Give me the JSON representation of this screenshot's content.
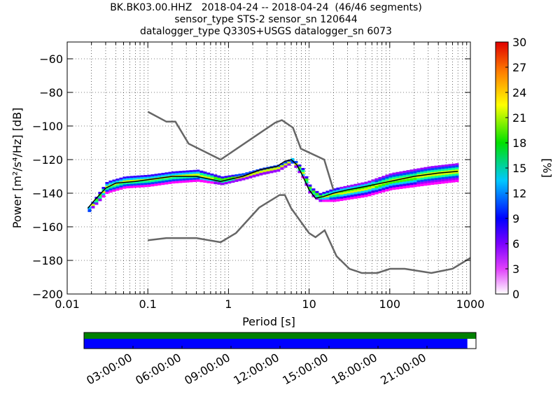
{
  "title": {
    "line1": "BK.BK03.00.HHZ   2018-04-24 -- 2018-04-24  (46/46 segments)",
    "line2": "sensor_type STS-2 sensor_sn 120644",
    "line3": "datalogger_type Q330S+USGS datalogger_sn 6073"
  },
  "colors": {
    "noise_model": "#666666",
    "mean_line": "#000000",
    "coverage_top": "#008000",
    "coverage_bottom": "#0000ff"
  },
  "chart_data": {
    "type": "heatmap",
    "title": "BK.BK03.00.HHZ   2018-04-24 -- 2018-04-24  (46/46 segments)",
    "xlabel": "Period [s]",
    "ylabel": "Power [m²/s⁴/Hz] [dB]",
    "x_scale": "log",
    "xlim": [
      0.01,
      1000
    ],
    "ylim": [
      -200,
      -50
    ],
    "x_ticks": [
      0.01,
      0.1,
      1,
      10,
      100,
      1000
    ],
    "x_tick_labels": [
      "0.01",
      "0.1",
      "1",
      "10",
      "100",
      "1000"
    ],
    "y_ticks": [
      -200,
      -180,
      -160,
      -140,
      -120,
      -100,
      -80,
      -60
    ],
    "grid": true,
    "colorbar": {
      "label": "[%]",
      "min": 0,
      "max": 30,
      "ticks": [
        0,
        3,
        6,
        9,
        12,
        15,
        18,
        21,
        24,
        27,
        30
      ]
    },
    "noise_models": [
      {
        "x": [
          0.1,
          0.17,
          0.22,
          0.32,
          0.8,
          3.8,
          4.6,
          6.3,
          7.9,
          15.4,
          20
        ],
        "y": [
          -91.5,
          -97.4,
          -97.4,
          -110.5,
          -120,
          -98,
          -96.5,
          -101,
          -113.5,
          -120,
          -138
        ]
      },
      {
        "x": [
          0.1,
          0.17,
          0.4,
          0.8,
          1.24,
          2.4,
          4.3,
          5,
          6,
          10,
          12,
          15.6,
          21.9,
          31.6,
          45,
          70,
          101,
          154,
          328,
          600,
          1000
        ],
        "y": [
          -168,
          -166.7,
          -166.7,
          -169.2,
          -163.7,
          -148.6,
          -141.1,
          -141.1,
          -149,
          -163.8,
          -166.2,
          -162.1,
          -177.5,
          -185,
          -187.5,
          -187.5,
          -185,
          -185,
          -187.5,
          -185,
          -178.5
        ]
      }
    ],
    "mean": {
      "x": [
        0.018,
        0.022,
        0.03,
        0.04,
        0.07,
        0.1,
        0.2,
        0.4,
        0.8,
        1.5,
        2.5,
        4,
        5,
        6,
        7,
        8,
        10,
        12,
        15,
        20,
        30,
        50,
        100,
        200,
        400,
        700
      ],
      "y": [
        -149,
        -144,
        -137,
        -134,
        -133,
        -132,
        -130,
        -130,
        -133,
        -130,
        -126,
        -124,
        -121,
        -120,
        -123,
        -128,
        -138,
        -143,
        -142,
        -140,
        -138,
        -136,
        -133,
        -130,
        -128,
        -127
      ]
    },
    "density_bands": [
      {
        "name": "upper",
        "x": [
          0.018,
          0.03,
          0.05,
          0.1,
          0.2,
          0.4,
          0.8,
          1.5,
          2.5,
          4,
          6,
          8,
          10,
          13,
          20,
          50,
          100,
          300,
          700
        ],
        "y": [
          -148,
          -133,
          -130,
          -129,
          -127,
          -126,
          -130,
          -128,
          -125,
          -123,
          -119,
          -125,
          -136,
          -140,
          -137,
          -133,
          -128,
          -124,
          -122
        ]
      },
      {
        "name": "lower",
        "x": [
          0.018,
          0.03,
          0.05,
          0.1,
          0.2,
          0.4,
          0.8,
          1.5,
          2.5,
          4,
          6,
          8,
          10,
          13,
          20,
          50,
          100,
          300,
          700
        ],
        "y": [
          -151,
          -140,
          -137,
          -136,
          -134,
          -133,
          -135,
          -132,
          -129,
          -127,
          -122,
          -131,
          -141,
          -145,
          -145,
          -142,
          -138,
          -135,
          -133
        ]
      }
    ],
    "coverage": {
      "ticks": [
        "03:00:00",
        "06:00:00",
        "09:00:00",
        "12:00:00",
        "15:00:00",
        "18:00:00",
        "21:00:00"
      ],
      "data_fraction": 0.978
    }
  }
}
